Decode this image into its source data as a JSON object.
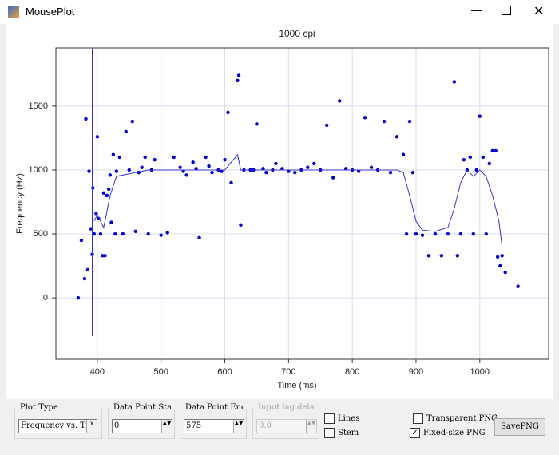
{
  "window": {
    "title": "MousePlot"
  },
  "chart_data": {
    "type": "scatter",
    "title": "1000 cpi",
    "x_label": "Time (ms)",
    "y_label": "Frequency (Hz)",
    "xlim": [
      335,
      1108
    ],
    "ylim": [
      -480,
      1955
    ],
    "xticks": [
      400,
      500,
      600,
      700,
      800,
      900,
      1000
    ],
    "yticks": [
      0,
      500,
      1000,
      1500
    ],
    "grid": true,
    "series": [
      {
        "type": "scatter",
        "color": "#0000cc",
        "x": [
          370,
          375,
          380,
          382,
          385,
          387,
          390,
          392,
          393,
          395,
          398,
          400,
          402,
          405,
          408,
          410,
          412,
          415,
          418,
          420,
          422,
          425,
          428,
          430,
          435,
          440,
          445,
          450,
          455,
          460,
          465,
          470,
          475,
          480,
          485,
          490,
          500,
          510,
          520,
          530,
          535,
          540,
          550,
          555,
          560,
          570,
          575,
          580,
          590,
          595,
          600,
          605,
          610,
          620,
          622,
          625,
          630,
          640,
          645,
          650,
          660,
          665,
          675,
          680,
          690,
          700,
          710,
          720,
          730,
          740,
          750,
          760,
          770,
          780,
          790,
          800,
          810,
          820,
          830,
          840,
          850,
          860,
          870,
          880,
          885,
          890,
          895,
          900,
          910,
          920,
          930,
          940,
          950,
          960,
          965,
          970,
          975,
          980,
          985,
          990,
          995,
          1000,
          1005,
          1010,
          1015,
          1020,
          1025,
          1028,
          1032,
          1035,
          1040,
          1060
        ],
        "values": [
          0,
          450,
          150,
          1400,
          220,
          990,
          540,
          340,
          860,
          500,
          660,
          1260,
          620,
          500,
          330,
          820,
          330,
          800,
          850,
          960,
          590,
          1120,
          500,
          990,
          1100,
          500,
          1300,
          1000,
          1380,
          520,
          980,
          1020,
          1100,
          500,
          1000,
          1080,
          490,
          510,
          1100,
          1020,
          990,
          960,
          1060,
          1010,
          470,
          1100,
          1030,
          980,
          1000,
          990,
          1080,
          1450,
          900,
          1700,
          1740,
          570,
          1000,
          1000,
          1000,
          1360,
          1010,
          980,
          1000,
          1050,
          1010,
          990,
          980,
          1000,
          1020,
          1050,
          1000,
          1350,
          940,
          1540,
          1010,
          1000,
          990,
          1410,
          1020,
          1000,
          1380,
          980,
          1260,
          1120,
          500,
          1380,
          980,
          500,
          490,
          330,
          500,
          330,
          500,
          1690,
          330,
          500,
          1080,
          1000,
          1100,
          500,
          1000,
          1420,
          1100,
          500,
          1050,
          1150,
          1150,
          320,
          250,
          330,
          200,
          90
        ]
      },
      {
        "type": "line",
        "color": "#3333cc",
        "x": [
          392,
          392,
          null,
          395,
          400,
          410,
          420,
          430,
          450,
          480,
          520,
          600,
          620,
          625,
          700,
          800,
          870,
          880,
          890,
          900,
          910,
          930,
          950,
          960,
          970,
          980,
          990,
          1000,
          1010,
          1020,
          1030,
          1035
        ],
        "values": [
          -300,
          1950,
          null,
          600,
          650,
          550,
          800,
          950,
          970,
          1000,
          1000,
          1000,
          1120,
          1000,
          1000,
          1000,
          1000,
          980,
          800,
          600,
          530,
          520,
          550,
          700,
          900,
          1000,
          950,
          1000,
          950,
          800,
          600,
          400
        ]
      }
    ]
  },
  "controls": {
    "plot_type": {
      "label": "Plot Type",
      "value": "Frequency vs. Ti"
    },
    "start": {
      "label": "Data Point Start",
      "value": "0"
    },
    "end": {
      "label": "Data Point End",
      "value": "575"
    },
    "lag": {
      "label": "Input lag delay",
      "value": "0.0"
    },
    "checkboxes": [
      {
        "label": "Lines",
        "checked": false
      },
      {
        "label": "Stem",
        "checked": false
      },
      {
        "label": "Transparent PNG",
        "checked": false
      },
      {
        "label": "Fixed-size PNG",
        "checked": true
      }
    ],
    "button": "SavePNG"
  }
}
